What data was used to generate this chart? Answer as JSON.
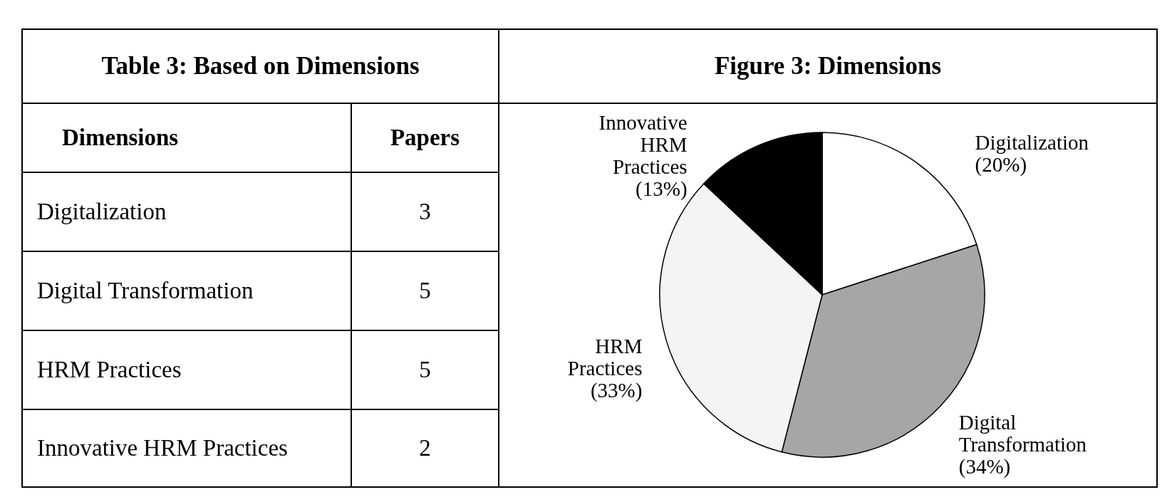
{
  "chart_data": [
    {
      "type": "other",
      "title": "Table 3: Based on Dimensions",
      "annotations": [
        "Dimensions",
        "Papers"
      ],
      "categories": [
        "Digitalization",
        "Digital Transformation",
        "HRM Practices",
        "Innovative HRM Practices"
      ],
      "values": [
        3,
        5,
        5,
        2
      ],
      "data_labels": true
    },
    {
      "type": "pie",
      "title": "Figure 3: Dimensions",
      "categories": [
        "Digitalization",
        "Digital Transformation",
        "HRM Practices",
        "Innovative HRM Practices"
      ],
      "values": [
        20,
        34,
        33,
        13
      ],
      "colors": [
        "#ffffff",
        "#a6a6a6",
        "#f4f4f4",
        "#000000"
      ],
      "value_labels": [
        "(20%)",
        "(34%)",
        "(33%)",
        "(13%)"
      ],
      "legend": false
    }
  ]
}
